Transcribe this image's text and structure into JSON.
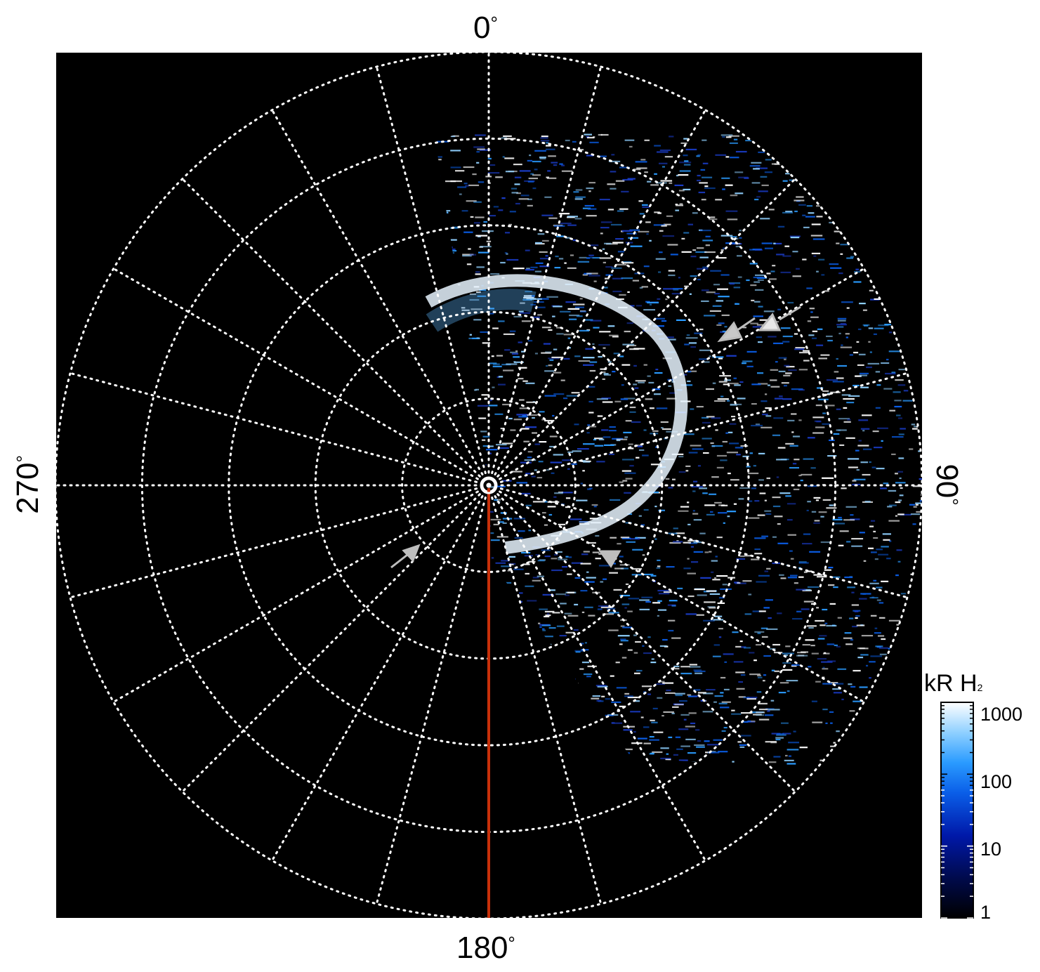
{
  "figure": {
    "angle_labels": {
      "top": "0",
      "right": "90",
      "bottom": "180",
      "left": "270",
      "degree_symbol": "°"
    },
    "colorbar": {
      "title_main": "kR H",
      "title_sub": "2",
      "ticks": [
        "1",
        "10",
        "100",
        "1000"
      ],
      "scale": "log",
      "range": [
        1,
        1000
      ],
      "colors": [
        "#000000",
        "#000a4a",
        "#0018a8",
        "#0a5ee8",
        "#2a9bff",
        "#8fd0ff",
        "#ffffff"
      ]
    },
    "colors": {
      "background": "#000000",
      "grid": "#ffffff",
      "meridian_line": "#c8300a",
      "arrow": "#bdbdbd"
    },
    "grid": {
      "style": "dotted",
      "rings": 5,
      "spokes_deg": 15
    },
    "markers": {
      "count_arrows": 4,
      "pole_marker": "circle"
    }
  }
}
